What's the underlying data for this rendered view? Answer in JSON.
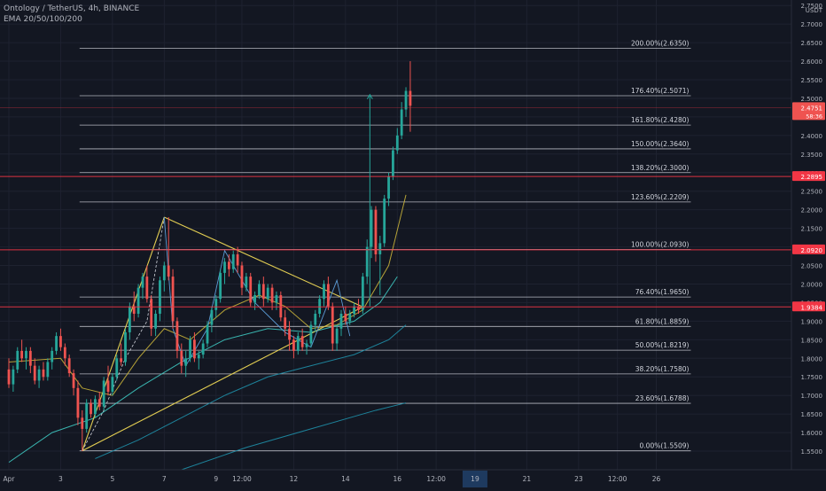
{
  "legend": {
    "symbol_line": "Ontology / TetherUS, 4h, BINANCE",
    "indicator_line": "EMA 20/50/100/200"
  },
  "colors": {
    "background": "#131722",
    "grid": "#1e2230",
    "axis_text": "#b2b5be",
    "up_candle": "#26a69a",
    "down_candle": "#ef5350",
    "fib_line": "#d1d4dc",
    "red_level": "#f23645",
    "triangle": "#e2cd52",
    "ema20": "#c8b13a",
    "ema50": "#3ec6c0",
    "ema100": "#1f8fa8",
    "arrow": "#26a69a",
    "wedge_line": "#5b9bd5"
  },
  "chart_data": {
    "type": "candlestick",
    "title": "Ontology / TetherUS, 4h, BINANCE",
    "y_unit": "USDT",
    "y_range": [
      1.5,
      2.76
    ],
    "y_ticks": [
      2.75,
      2.7,
      2.65,
      2.6,
      2.55,
      2.5,
      2.45,
      2.4,
      2.35,
      2.3,
      2.25,
      2.2,
      2.15,
      2.1,
      2.05,
      2.0,
      1.95,
      1.9,
      1.85,
      1.8,
      1.75,
      1.7,
      1.65,
      1.6,
      1.55
    ],
    "y_tick_labels": [
      "2.7500",
      "2.7000",
      "2.6500",
      "2.6000",
      "2.5500",
      "2.5000",
      "2.4500",
      "2.4000",
      "2.3500",
      "2.3000",
      "2.2500",
      "2.2000",
      "2.1500",
      "2.1000",
      "2.0500",
      "2.0000",
      "1.9500",
      "1.9000",
      "1.8500",
      "1.8000",
      "1.7500",
      "1.7000",
      "1.6500",
      "1.6000",
      "1.5500"
    ],
    "x_ticks": [
      {
        "bar": 0,
        "label": "Apr"
      },
      {
        "bar": 12,
        "label": "3"
      },
      {
        "bar": 24,
        "label": "5"
      },
      {
        "bar": 36,
        "label": "7"
      },
      {
        "bar": 48,
        "label": "9"
      },
      {
        "bar": 54,
        "label": "12:00"
      },
      {
        "bar": 66,
        "label": "12"
      },
      {
        "bar": 78,
        "label": "14"
      },
      {
        "bar": 90,
        "label": "16"
      },
      {
        "bar": 99,
        "label": "12:00"
      },
      {
        "bar": 108,
        "label": "19",
        "highlight": true
      },
      {
        "bar": 120,
        "label": "21"
      },
      {
        "bar": 132,
        "label": "23"
      },
      {
        "bar": 141,
        "label": "12:00"
      },
      {
        "bar": 150,
        "label": "26"
      }
    ],
    "candles": [
      [
        1.77,
        1.8,
        1.72,
        1.73
      ],
      [
        1.73,
        1.78,
        1.71,
        1.77
      ],
      [
        1.77,
        1.83,
        1.76,
        1.82
      ],
      [
        1.82,
        1.85,
        1.79,
        1.8
      ],
      [
        1.8,
        1.83,
        1.77,
        1.82
      ],
      [
        1.82,
        1.83,
        1.76,
        1.78
      ],
      [
        1.78,
        1.8,
        1.73,
        1.74
      ],
      [
        1.74,
        1.78,
        1.72,
        1.77
      ],
      [
        1.77,
        1.79,
        1.74,
        1.75
      ],
      [
        1.75,
        1.8,
        1.74,
        1.79
      ],
      [
        1.79,
        1.83,
        1.77,
        1.82
      ],
      [
        1.82,
        1.87,
        1.81,
        1.86
      ],
      [
        1.86,
        1.88,
        1.82,
        1.83
      ],
      [
        1.83,
        1.84,
        1.78,
        1.8
      ],
      [
        1.8,
        1.81,
        1.75,
        1.76
      ],
      [
        1.76,
        1.77,
        1.7,
        1.72
      ],
      [
        1.72,
        1.74,
        1.62,
        1.64
      ],
      [
        1.64,
        1.66,
        1.55,
        1.61
      ],
      [
        1.61,
        1.69,
        1.6,
        1.68
      ],
      [
        1.68,
        1.69,
        1.64,
        1.65
      ],
      [
        1.65,
        1.7,
        1.64,
        1.69
      ],
      [
        1.69,
        1.71,
        1.66,
        1.67
      ],
      [
        1.67,
        1.75,
        1.66,
        1.74
      ],
      [
        1.74,
        1.78,
        1.7,
        1.71
      ],
      [
        1.71,
        1.76,
        1.7,
        1.75
      ],
      [
        1.75,
        1.81,
        1.74,
        1.8
      ],
      [
        1.8,
        1.84,
        1.78,
        1.79
      ],
      [
        1.79,
        1.88,
        1.78,
        1.87
      ],
      [
        1.87,
        1.95,
        1.85,
        1.94
      ],
      [
        1.94,
        1.98,
        1.9,
        1.92
      ],
      [
        1.92,
        2.0,
        1.91,
        1.99
      ],
      [
        1.99,
        2.03,
        1.96,
        2.02
      ],
      [
        2.02,
        2.05,
        1.95,
        1.96
      ],
      [
        1.96,
        1.97,
        1.86,
        1.88
      ],
      [
        1.88,
        1.93,
        1.86,
        1.92
      ],
      [
        1.92,
        2.02,
        1.9,
        2.01
      ],
      [
        2.01,
        2.06,
        1.98,
        2.05
      ],
      [
        2.05,
        2.18,
        2.01,
        2.02
      ],
      [
        2.02,
        2.04,
        1.88,
        1.9
      ],
      [
        1.9,
        1.91,
        1.8,
        1.82
      ],
      [
        1.82,
        1.84,
        1.76,
        1.78
      ],
      [
        1.78,
        1.82,
        1.75,
        1.8
      ],
      [
        1.8,
        1.86,
        1.79,
        1.85
      ],
      [
        1.85,
        1.87,
        1.79,
        1.8
      ],
      [
        1.8,
        1.82,
        1.77,
        1.81
      ],
      [
        1.81,
        1.85,
        1.8,
        1.84
      ],
      [
        1.84,
        1.9,
        1.83,
        1.89
      ],
      [
        1.89,
        1.94,
        1.87,
        1.93
      ],
      [
        1.93,
        1.97,
        1.91,
        1.96
      ],
      [
        1.96,
        2.04,
        1.95,
        2.03
      ],
      [
        2.03,
        2.07,
        2.0,
        2.06
      ],
      [
        2.06,
        2.08,
        2.02,
        2.04
      ],
      [
        2.04,
        2.09,
        2.03,
        2.08
      ],
      [
        2.08,
        2.1,
        2.03,
        2.05
      ],
      [
        2.05,
        2.06,
        1.97,
        1.99
      ],
      [
        1.99,
        2.03,
        1.98,
        2.02
      ],
      [
        2.02,
        2.03,
        1.94,
        1.95
      ],
      [
        1.95,
        1.98,
        1.93,
        1.97
      ],
      [
        1.97,
        2.01,
        1.96,
        2.0
      ],
      [
        2.0,
        2.02,
        1.94,
        1.96
      ],
      [
        1.96,
        2.0,
        1.95,
        1.99
      ],
      [
        1.99,
        2.0,
        1.93,
        1.95
      ],
      [
        1.95,
        1.98,
        1.93,
        1.97
      ],
      [
        1.97,
        1.98,
        1.9,
        1.91
      ],
      [
        1.91,
        1.93,
        1.86,
        1.88
      ],
      [
        1.88,
        1.9,
        1.82,
        1.85
      ],
      [
        1.85,
        1.86,
        1.8,
        1.82
      ],
      [
        1.82,
        1.87,
        1.81,
        1.86
      ],
      [
        1.86,
        1.88,
        1.82,
        1.83
      ],
      [
        1.83,
        1.85,
        1.81,
        1.84
      ],
      [
        1.84,
        1.9,
        1.83,
        1.89
      ],
      [
        1.89,
        1.93,
        1.87,
        1.92
      ],
      [
        1.92,
        1.97,
        1.91,
        1.96
      ],
      [
        1.96,
        2.01,
        1.94,
        2.0
      ],
      [
        2.0,
        2.02,
        1.93,
        1.94
      ],
      [
        1.94,
        1.95,
        1.82,
        1.84
      ],
      [
        1.84,
        1.89,
        1.82,
        1.88
      ],
      [
        1.88,
        1.93,
        1.86,
        1.92
      ],
      [
        1.92,
        1.94,
        1.89,
        1.9
      ],
      [
        1.9,
        1.93,
        1.89,
        1.92
      ],
      [
        1.92,
        1.95,
        1.91,
        1.94
      ],
      [
        1.94,
        1.96,
        1.92,
        1.93
      ],
      [
        1.93,
        2.03,
        1.92,
        2.02
      ],
      [
        2.02,
        2.12,
        2.0,
        2.1
      ],
      [
        2.1,
        2.21,
        2.07,
        2.2
      ],
      [
        2.2,
        2.21,
        2.06,
        2.08
      ],
      [
        2.08,
        2.13,
        1.97,
        2.11
      ],
      [
        2.11,
        2.24,
        2.1,
        2.23
      ],
      [
        2.23,
        2.3,
        2.21,
        2.29
      ],
      [
        2.29,
        2.37,
        2.28,
        2.36
      ],
      [
        2.36,
        2.42,
        2.35,
        2.4
      ],
      [
        2.4,
        2.49,
        2.39,
        2.47
      ],
      [
        2.47,
        2.53,
        2.45,
        2.52
      ],
      [
        2.52,
        2.6,
        2.41,
        2.48
      ]
    ],
    "fib_levels": [
      {
        "label": "200.00%(2.6350)",
        "value": 2.635
      },
      {
        "label": "176.40%(2.5071)",
        "value": 2.5071
      },
      {
        "label": "161.80%(2.4280)",
        "value": 2.428
      },
      {
        "label": "150.00%(2.3640)",
        "value": 2.364
      },
      {
        "label": "138.20%(2.3000)",
        "value": 2.3
      },
      {
        "label": "123.60%(2.2209)",
        "value": 2.2209
      },
      {
        "label": "100.00%(2.0930)",
        "value": 2.093
      },
      {
        "label": "76.40%(1.9650)",
        "value": 1.965
      },
      {
        "label": "61.80%(1.8859)",
        "value": 1.8859
      },
      {
        "label": "50.00%(1.8219)",
        "value": 1.8219
      },
      {
        "label": "38.20%(1.7580)",
        "value": 1.758
      },
      {
        "label": "23.60%(1.6788)",
        "value": 1.6788
      },
      {
        "label": "0.00%(1.5509)",
        "value": 1.5509
      }
    ],
    "fib_start_bar": 17,
    "fib_end_bar": 158,
    "price_labels": [
      {
        "value": 2.4751,
        "text": "2.4751",
        "sub": "58:36",
        "color": "#ef5350"
      },
      {
        "value": 2.2895,
        "text": "2.2895",
        "color": "#f23645"
      },
      {
        "value": 2.092,
        "text": "2.0920",
        "color": "#f23645"
      },
      {
        "value": 1.9384,
        "text": "1.9384",
        "color": "#f23645"
      }
    ],
    "red_levels": [
      2.4751,
      2.2895,
      2.092,
      1.9384
    ],
    "triangle": [
      {
        "b1": 17,
        "v1": 1.5509,
        "b2": 82,
        "v2": 1.9384
      },
      {
        "b1": 17,
        "v1": 1.5509,
        "b2": 36,
        "v2": 2.18
      },
      {
        "b1": 36,
        "v1": 2.18,
        "b2": 82,
        "v2": 1.9384
      }
    ],
    "ema20": [
      [
        0,
        1.79
      ],
      [
        12,
        1.8
      ],
      [
        17,
        1.72
      ],
      [
        24,
        1.7
      ],
      [
        30,
        1.8
      ],
      [
        36,
        1.88
      ],
      [
        42,
        1.85
      ],
      [
        50,
        1.93
      ],
      [
        58,
        1.97
      ],
      [
        64,
        1.94
      ],
      [
        70,
        1.88
      ],
      [
        76,
        1.89
      ],
      [
        82,
        1.93
      ],
      [
        88,
        2.05
      ],
      [
        92,
        2.24
      ]
    ],
    "ema50": [
      [
        0,
        1.52
      ],
      [
        10,
        1.6
      ],
      [
        20,
        1.64
      ],
      [
        30,
        1.72
      ],
      [
        40,
        1.79
      ],
      [
        50,
        1.85
      ],
      [
        60,
        1.88
      ],
      [
        70,
        1.87
      ],
      [
        80,
        1.9
      ],
      [
        86,
        1.95
      ],
      [
        90,
        2.02
      ]
    ],
    "ema100": [
      [
        20,
        1.53
      ],
      [
        30,
        1.58
      ],
      [
        40,
        1.64
      ],
      [
        50,
        1.7
      ],
      [
        60,
        1.75
      ],
      [
        70,
        1.78
      ],
      [
        80,
        1.81
      ],
      [
        88,
        1.85
      ],
      [
        92,
        1.89
      ]
    ],
    "ema200": [
      [
        40,
        1.5
      ],
      [
        55,
        1.56
      ],
      [
        70,
        1.61
      ],
      [
        85,
        1.66
      ],
      [
        92,
        1.68
      ]
    ],
    "measure_arrow": {
      "bar": 82,
      "from": 1.94,
      "to": 2.51
    }
  }
}
